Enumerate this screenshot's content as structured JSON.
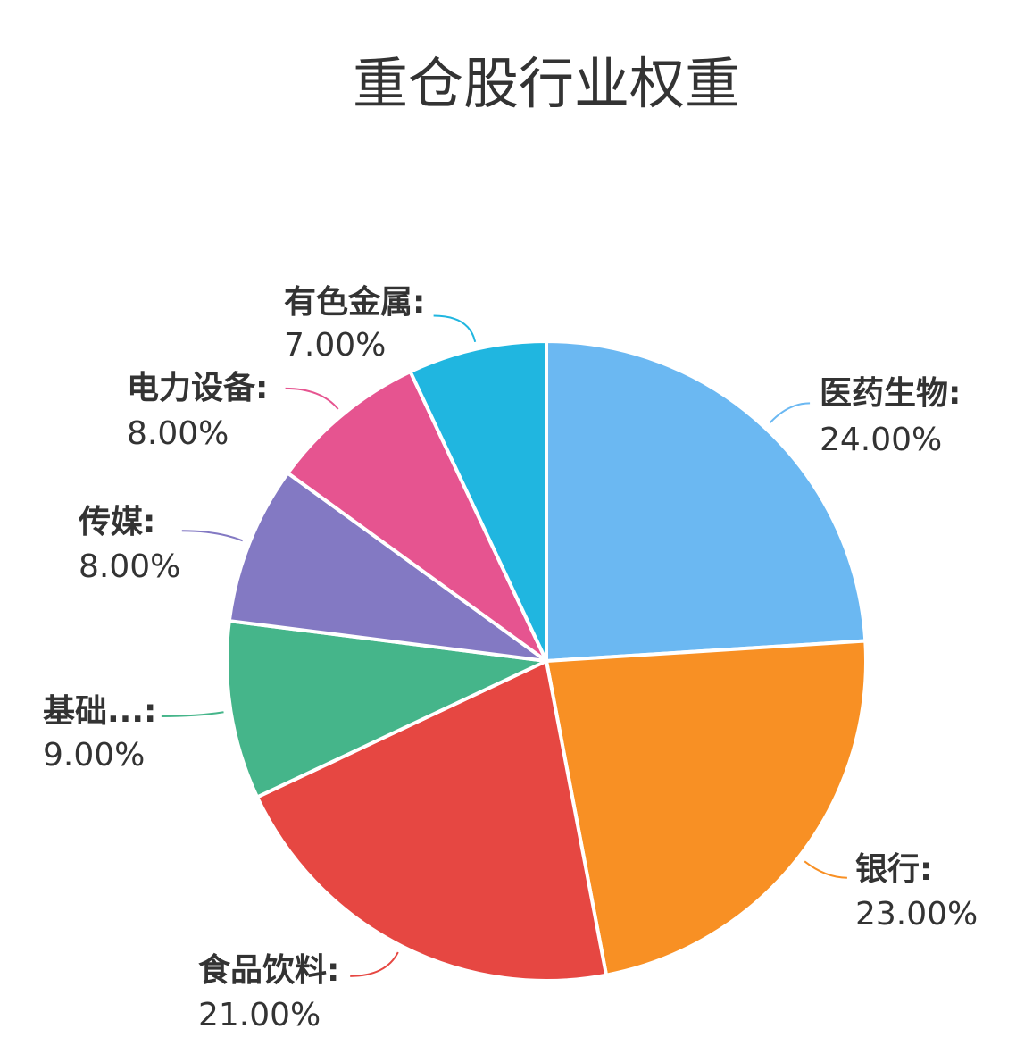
{
  "chart_data": {
    "type": "pie",
    "title": "重仓股行业权重",
    "start_angle_deg": 90,
    "direction": "clockwise",
    "slices": [
      {
        "name": "医药生物",
        "value": 24.0,
        "label": "24.00%",
        "color": "#6BB8F2"
      },
      {
        "name": "银行",
        "value": 23.0,
        "label": "23.00%",
        "color": "#F89024"
      },
      {
        "name": "食品饮料",
        "value": 21.0,
        "label": "21.00%",
        "color": "#E64742"
      },
      {
        "name": "基础...",
        "value": 9.0,
        "label": "9.00%",
        "color": "#45B58A"
      },
      {
        "name": "传媒",
        "value": 8.0,
        "label": "8.00%",
        "color": "#8379C3"
      },
      {
        "name": "电力设备",
        "value": 8.0,
        "label": "8.00%",
        "color": "#E65490"
      },
      {
        "name": "有色金属",
        "value": 7.0,
        "label": "7.00%",
        "color": "#20B6E0"
      }
    ]
  }
}
